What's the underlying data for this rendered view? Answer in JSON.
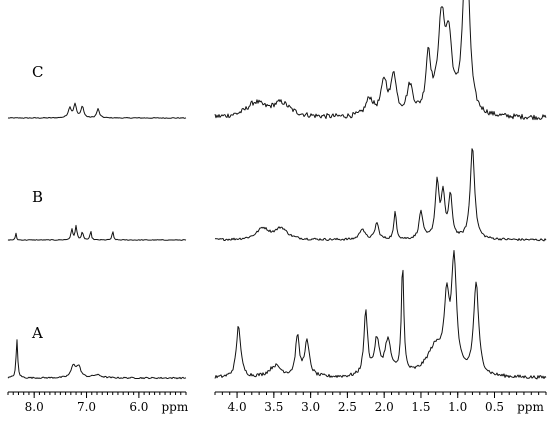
{
  "chart_data": {
    "type": "line",
    "title": "",
    "xlabel": "ppm",
    "ylabel": "",
    "grid": false,
    "x_reversed": true,
    "panels": [
      {
        "id": "aromatic",
        "xlim": [
          8.5,
          5.1
        ],
        "tick_values": [
          8.0,
          7.0,
          6.0
        ],
        "tick_labels": [
          "8.0",
          "7.0",
          "6.0"
        ],
        "unit_label": "ppm"
      },
      {
        "id": "aliphatic",
        "xlim": [
          4.3,
          -0.2
        ],
        "tick_values": [
          4.0,
          3.5,
          3.0,
          2.5,
          2.0,
          1.5,
          1.0,
          0.5
        ],
        "tick_labels": [
          "4.0",
          "3.5",
          "3.0",
          "2.5",
          "2.0",
          "1.5",
          "1.0",
          "0.5"
        ],
        "unit_label": "ppm"
      }
    ],
    "series": [
      {
        "name": "C",
        "noise": 0.045,
        "aromatic_peaks": [
          [
            7.32,
            0.55,
            0.035
          ],
          [
            7.22,
            0.75,
            0.03
          ],
          [
            7.08,
            0.65,
            0.03
          ],
          [
            6.78,
            0.5,
            0.03
          ]
        ],
        "aliphatic_peaks": [
          [
            3.75,
            0.12,
            0.15
          ],
          [
            3.4,
            0.12,
            0.15
          ],
          [
            2.2,
            0.15,
            0.06
          ],
          [
            2.0,
            0.3,
            0.05
          ],
          [
            1.87,
            0.35,
            0.04
          ],
          [
            1.65,
            0.25,
            0.05
          ],
          [
            1.4,
            0.5,
            0.04
          ],
          [
            1.22,
            0.8,
            0.06
          ],
          [
            1.12,
            0.55,
            0.05
          ],
          [
            0.9,
            1.0,
            0.05
          ],
          [
            0.86,
            0.6,
            0.04
          ]
        ]
      },
      {
        "name": "B",
        "noise": 0.025,
        "aromatic_peaks": [
          [
            8.35,
            0.25,
            0.01
          ],
          [
            7.28,
            0.35,
            0.02
          ],
          [
            7.2,
            0.45,
            0.02
          ],
          [
            7.08,
            0.25,
            0.02
          ],
          [
            6.92,
            0.3,
            0.015
          ],
          [
            6.5,
            0.3,
            0.015
          ]
        ],
        "aliphatic_peaks": [
          [
            3.65,
            0.12,
            0.1
          ],
          [
            3.4,
            0.12,
            0.1
          ],
          [
            2.3,
            0.12,
            0.04
          ],
          [
            2.1,
            0.18,
            0.03
          ],
          [
            1.85,
            0.3,
            0.02
          ],
          [
            1.5,
            0.3,
            0.03
          ],
          [
            1.28,
            0.6,
            0.03
          ],
          [
            1.2,
            0.45,
            0.03
          ],
          [
            1.1,
            0.45,
            0.03
          ],
          [
            0.8,
            1.0,
            0.035
          ]
        ]
      },
      {
        "name": "A",
        "noise": 0.03,
        "aromatic_peaks": [
          [
            8.33,
            0.8,
            0.018
          ],
          [
            7.25,
            0.25,
            0.05
          ],
          [
            7.15,
            0.22,
            0.05
          ],
          [
            6.8,
            0.06,
            0.1
          ]
        ],
        "aliphatic_peaks": [
          [
            3.98,
            0.45,
            0.035
          ],
          [
            3.48,
            0.1,
            0.1
          ],
          [
            3.18,
            0.35,
            0.03
          ],
          [
            3.05,
            0.3,
            0.04
          ],
          [
            2.25,
            0.55,
            0.03
          ],
          [
            2.1,
            0.3,
            0.04
          ],
          [
            1.95,
            0.3,
            0.05
          ],
          [
            1.75,
            0.95,
            0.02
          ],
          [
            1.3,
            0.25,
            0.15
          ],
          [
            1.15,
            0.55,
            0.04
          ],
          [
            1.05,
            0.95,
            0.04
          ],
          [
            0.75,
            0.8,
            0.04
          ]
        ]
      }
    ]
  }
}
